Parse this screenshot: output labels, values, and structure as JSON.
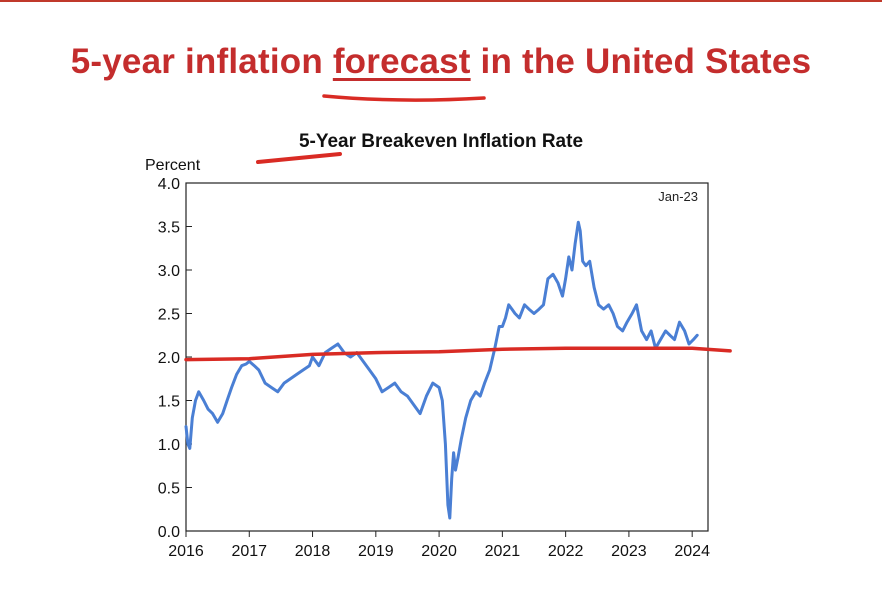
{
  "slide": {
    "title_pre": "5-year inflation ",
    "title_emph": "forecast",
    "title_post": " in the United States",
    "accent_color": "#c42d2d"
  },
  "chart_data": {
    "type": "line",
    "title": "5-Year Breakeven Inflation Rate",
    "ylabel": "Percent",
    "annotation": "Jan-23",
    "ylim": [
      0.0,
      4.0
    ],
    "yticks": [
      "0.0",
      "0.5",
      "1.0",
      "1.5",
      "2.0",
      "2.5",
      "3.0",
      "3.5",
      "4.0"
    ],
    "xlim": [
      2016,
      2024.25
    ],
    "xticks": [
      "2016",
      "2017",
      "2018",
      "2019",
      "2020",
      "2021",
      "2022",
      "2023",
      "2024"
    ],
    "grid": false,
    "series": [
      {
        "color": "#4a7fd4",
        "x": [
          2016.0,
          2016.03,
          2016.06,
          2016.1,
          2016.15,
          2016.2,
          2016.28,
          2016.35,
          2016.42,
          2016.5,
          2016.58,
          2016.65,
          2016.72,
          2016.8,
          2016.88,
          2016.95,
          2017.0,
          2017.08,
          2017.15,
          2017.25,
          2017.35,
          2017.45,
          2017.55,
          2017.65,
          2017.75,
          2017.85,
          2017.95,
          2018.0,
          2018.1,
          2018.2,
          2018.3,
          2018.4,
          2018.5,
          2018.6,
          2018.7,
          2018.8,
          2018.9,
          2019.0,
          2019.1,
          2019.2,
          2019.3,
          2019.4,
          2019.5,
          2019.6,
          2019.7,
          2019.8,
          2019.9,
          2020.0,
          2020.05,
          2020.1,
          2020.14,
          2020.17,
          2020.2,
          2020.23,
          2020.26,
          2020.3,
          2020.35,
          2020.42,
          2020.5,
          2020.58,
          2020.65,
          2020.72,
          2020.8,
          2020.88,
          2020.95,
          2021.0,
          2021.05,
          2021.1,
          2021.15,
          2021.2,
          2021.27,
          2021.35,
          2021.42,
          2021.5,
          2021.58,
          2021.65,
          2021.72,
          2021.8,
          2021.88,
          2021.95,
          2022.0,
          2022.05,
          2022.1,
          2022.15,
          2022.2,
          2022.23,
          2022.27,
          2022.32,
          2022.38,
          2022.45,
          2022.52,
          2022.6,
          2022.68,
          2022.75,
          2022.82,
          2022.9,
          2022.97,
          2023.05,
          2023.12,
          2023.2,
          2023.28,
          2023.35,
          2023.42,
          2023.5,
          2023.58,
          2023.65,
          2023.72,
          2023.8,
          2023.88,
          2023.95,
          2024.02,
          2024.08
        ],
        "values": [
          1.2,
          1.0,
          0.95,
          1.3,
          1.5,
          1.6,
          1.5,
          1.4,
          1.35,
          1.25,
          1.35,
          1.5,
          1.65,
          1.8,
          1.9,
          1.92,
          1.95,
          1.9,
          1.85,
          1.7,
          1.65,
          1.6,
          1.7,
          1.75,
          1.8,
          1.85,
          1.9,
          2.0,
          1.9,
          2.05,
          2.1,
          2.15,
          2.05,
          2.0,
          2.05,
          1.95,
          1.85,
          1.75,
          1.6,
          1.65,
          1.7,
          1.6,
          1.55,
          1.45,
          1.35,
          1.55,
          1.7,
          1.65,
          1.5,
          1.0,
          0.3,
          0.15,
          0.6,
          0.9,
          0.7,
          0.85,
          1.05,
          1.3,
          1.5,
          1.6,
          1.55,
          1.7,
          1.85,
          2.1,
          2.35,
          2.35,
          2.45,
          2.6,
          2.55,
          2.5,
          2.45,
          2.6,
          2.55,
          2.5,
          2.55,
          2.6,
          2.9,
          2.95,
          2.85,
          2.7,
          2.9,
          3.15,
          3.0,
          3.3,
          3.55,
          3.45,
          3.1,
          3.05,
          3.1,
          2.8,
          2.6,
          2.55,
          2.6,
          2.5,
          2.35,
          2.3,
          2.4,
          2.5,
          2.6,
          2.3,
          2.2,
          2.3,
          2.1,
          2.2,
          2.3,
          2.25,
          2.2,
          2.4,
          2.3,
          2.15,
          2.2,
          2.25
        ]
      }
    ],
    "highlight_line": {
      "color": "#d92b24",
      "x": [
        2016.0,
        2017.0,
        2018.0,
        2019.0,
        2020.0,
        2021.0,
        2022.0,
        2023.0,
        2024.0,
        2024.6
      ],
      "values": [
        1.97,
        1.98,
        2.03,
        2.05,
        2.06,
        2.09,
        2.1,
        2.1,
        2.1,
        2.07
      ]
    }
  }
}
